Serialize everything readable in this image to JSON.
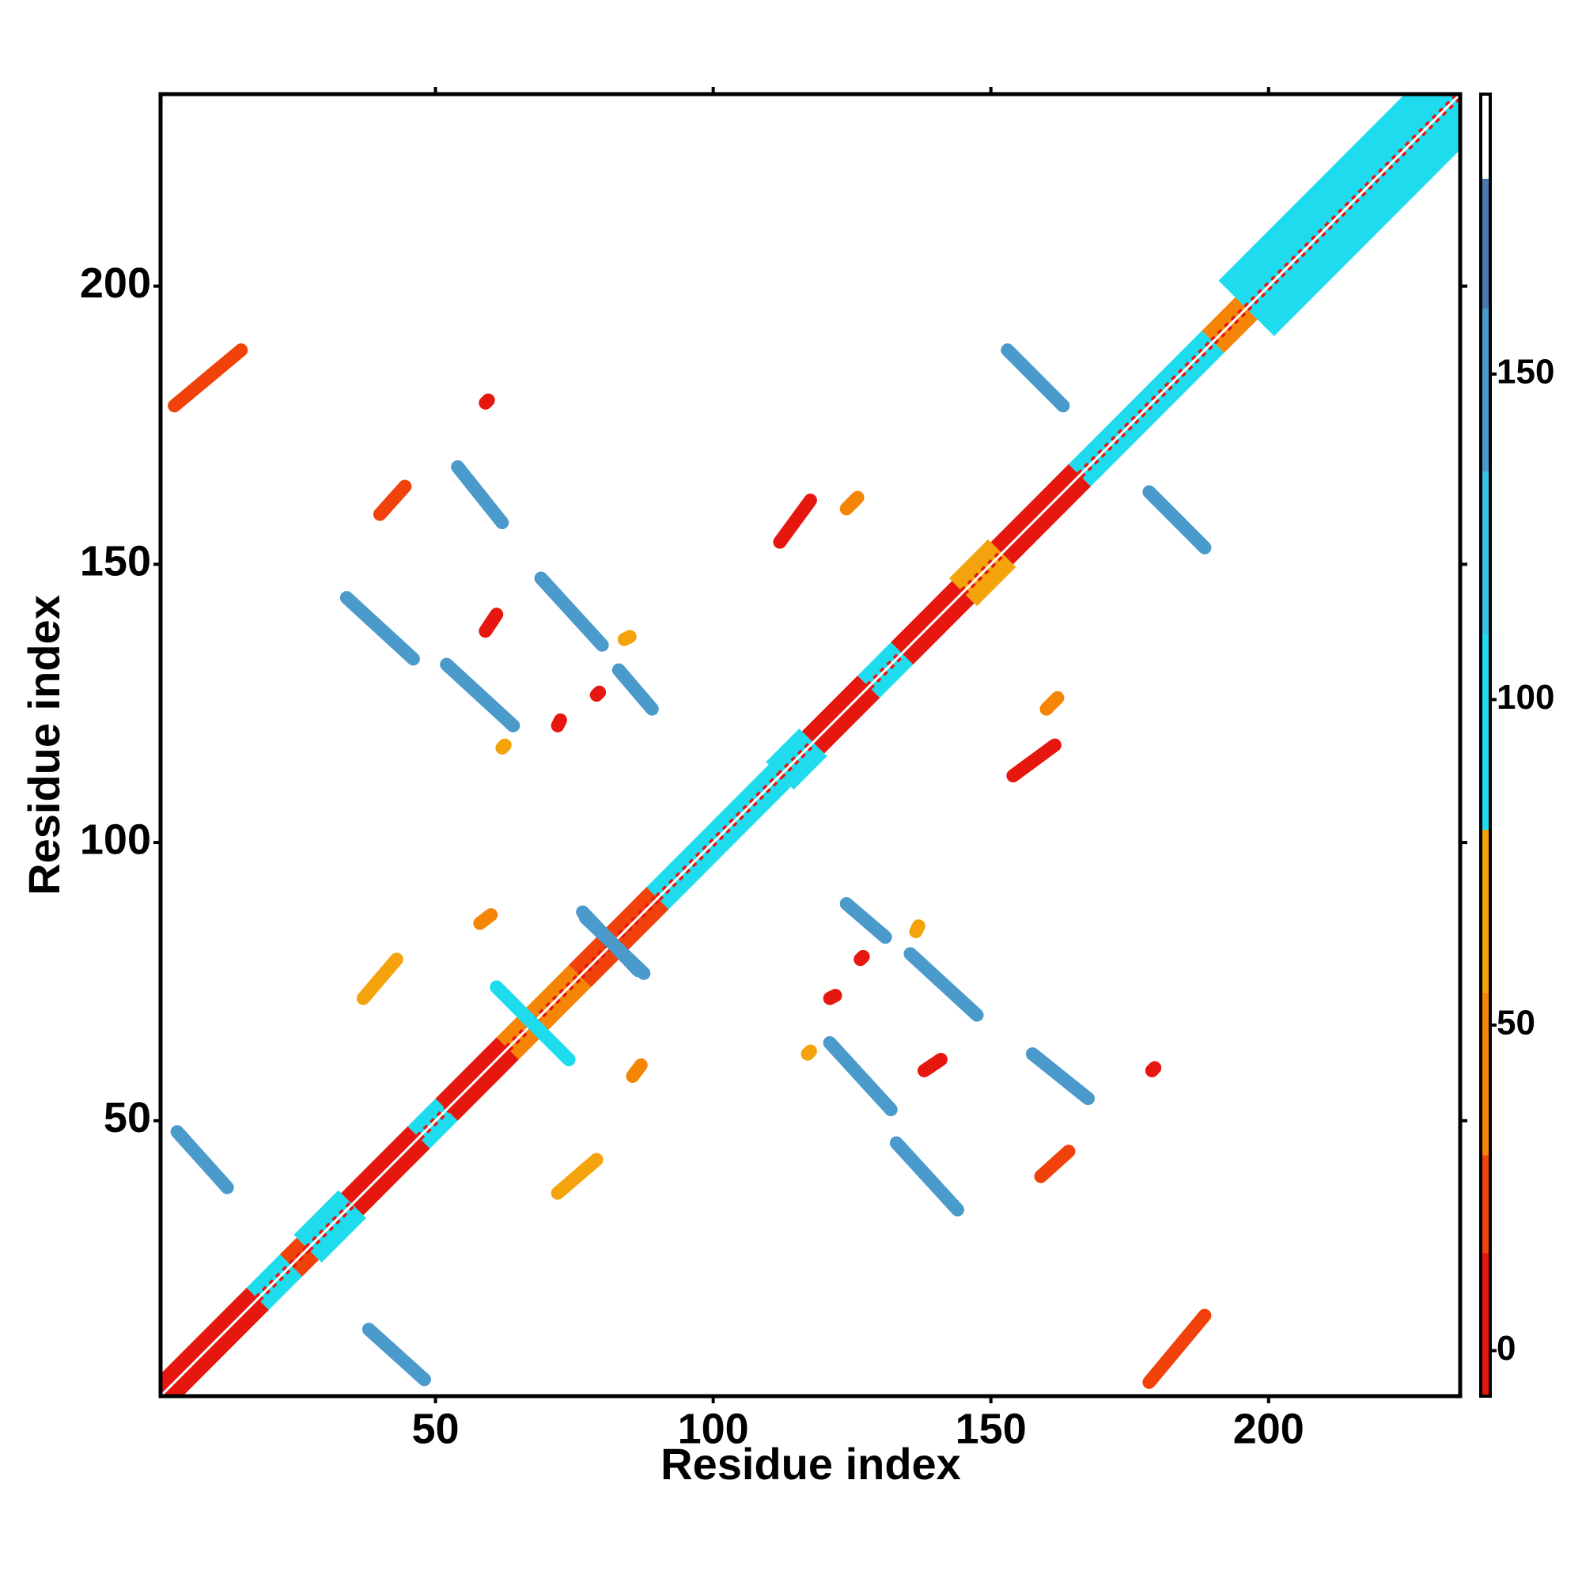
{
  "chart_data": {
    "type": "contact-map",
    "xlabel": "Residue index",
    "ylabel": "Residue index",
    "xlim": [
      0.5,
      234.5
    ],
    "ylim": [
      0.5,
      234.5
    ],
    "xticks": [
      50,
      100,
      150,
      200
    ],
    "yticks": [
      50,
      100,
      150,
      200
    ],
    "symmetric": true,
    "colorbar": {
      "lim": [
        -7,
        193
      ],
      "ticks": [
        0,
        50,
        100,
        150
      ],
      "segments": [
        {
          "from": -7,
          "to": 15,
          "color": "#e5170e"
        },
        {
          "from": 15,
          "to": 30,
          "color": "#f0420a"
        },
        {
          "from": 30,
          "to": 55,
          "color": "#f58506"
        },
        {
          "from": 55,
          "to": 80,
          "color": "#f5a30c"
        },
        {
          "from": 80,
          "to": 110,
          "color": "#1edcee"
        },
        {
          "from": 110,
          "to": 135,
          "color": "#38c2e6"
        },
        {
          "from": 135,
          "to": 160,
          "color": "#4a9acc"
        },
        {
          "from": 160,
          "to": 180,
          "color": "#4a78b0"
        },
        {
          "from": 180,
          "to": 193,
          "color": "#ffffff"
        }
      ]
    },
    "diagonal": [
      {
        "from": 1,
        "to": 18,
        "width": 4,
        "value": 15
      },
      {
        "from": 18,
        "to": 24,
        "width": 4,
        "value": 100
      },
      {
        "from": 24,
        "to": 27,
        "width": 4,
        "value": 20
      },
      {
        "from": 27,
        "to": 35,
        "width": 5,
        "value": 100
      },
      {
        "from": 35,
        "to": 47,
        "width": 4,
        "value": 10
      },
      {
        "from": 47,
        "to": 52,
        "width": 4,
        "value": 100
      },
      {
        "from": 52,
        "to": 63,
        "width": 4,
        "value": 15
      },
      {
        "from": 63,
        "to": 76,
        "width": 4,
        "value": 50
      },
      {
        "from": 76,
        "to": 90,
        "width": 4,
        "value": 25
      },
      {
        "from": 90,
        "to": 112,
        "width": 4,
        "value": 95
      },
      {
        "from": 112,
        "to": 118,
        "width": 5,
        "value": 110
      },
      {
        "from": 118,
        "to": 128,
        "width": 4,
        "value": 10
      },
      {
        "from": 128,
        "to": 134,
        "width": 4,
        "value": 100
      },
      {
        "from": 134,
        "to": 145,
        "width": 4,
        "value": 15
      },
      {
        "from": 145,
        "to": 152,
        "width": 5,
        "value": 60
      },
      {
        "from": 152,
        "to": 166,
        "width": 4,
        "value": 10
      },
      {
        "from": 166,
        "to": 190,
        "width": 4,
        "value": 90
      },
      {
        "from": 190,
        "to": 196,
        "width": 4,
        "value": 55
      },
      {
        "from": 196,
        "to": 234,
        "width": 10,
        "value": 100
      }
    ],
    "contacts": [
      {
        "x": [
          178.5,
          188.5
        ],
        "y": [
          3,
          15
        ],
        "value": 20
      },
      {
        "x": [
          38,
          48
        ],
        "y": [
          12.5,
          3.5
        ],
        "value": 150
      },
      {
        "x": [
          133,
          144
        ],
        "y": [
          46,
          34
        ],
        "value": 150
      },
      {
        "x": [
          157.5,
          167.5
        ],
        "y": [
          62,
          54
        ],
        "value": 150
      },
      {
        "x": [
          121,
          132
        ],
        "y": [
          64,
          52
        ],
        "value": 150
      },
      {
        "x": [
          135.5,
          147.5
        ],
        "y": [
          80,
          69
        ],
        "value": 145
      },
      {
        "x": [
          124,
          131
        ],
        "y": [
          89,
          83
        ],
        "value": 150
      },
      {
        "x": [
          178.5,
          188.5
        ],
        "y": [
          163,
          153
        ],
        "value": 150
      },
      {
        "x": [
          154,
          161.5
        ],
        "y": [
          112,
          117.5
        ],
        "value": 10
      },
      {
        "x": [
          72,
          79
        ],
        "y": [
          37,
          43
        ],
        "value": 65
      },
      {
        "x": [
          85.5,
          87
        ],
        "y": [
          58,
          60
        ],
        "value": 40
      },
      {
        "x": [
          159,
          164
        ],
        "y": [
          40,
          44.5
        ],
        "value": 30
      },
      {
        "x": [
          160,
          162
        ],
        "y": [
          124,
          126
        ],
        "value": 40
      },
      {
        "x": [
          179,
          179.5
        ],
        "y": [
          59,
          59.5
        ],
        "value": 10
      },
      {
        "x": [
          121,
          122
        ],
        "y": [
          72,
          72.5
        ],
        "value": 10
      },
      {
        "x": [
          138,
          141
        ],
        "y": [
          59,
          61
        ],
        "value": 10
      },
      {
        "x": [
          126.5,
          127
        ],
        "y": [
          79,
          79.5
        ],
        "value": 10
      },
      {
        "x": [
          136.5,
          137
        ],
        "y": [
          84,
          85
        ],
        "value": 60
      },
      {
        "x": [
          117,
          117.5
        ],
        "y": [
          62,
          62.5
        ],
        "value": 60
      },
      {
        "x": [
          61,
          74
        ],
        "y": [
          74,
          61
        ],
        "value": 110
      },
      {
        "x": [
          77,
          87.5
        ],
        "y": [
          86.5,
          76.5
        ],
        "value": 150
      }
    ]
  }
}
